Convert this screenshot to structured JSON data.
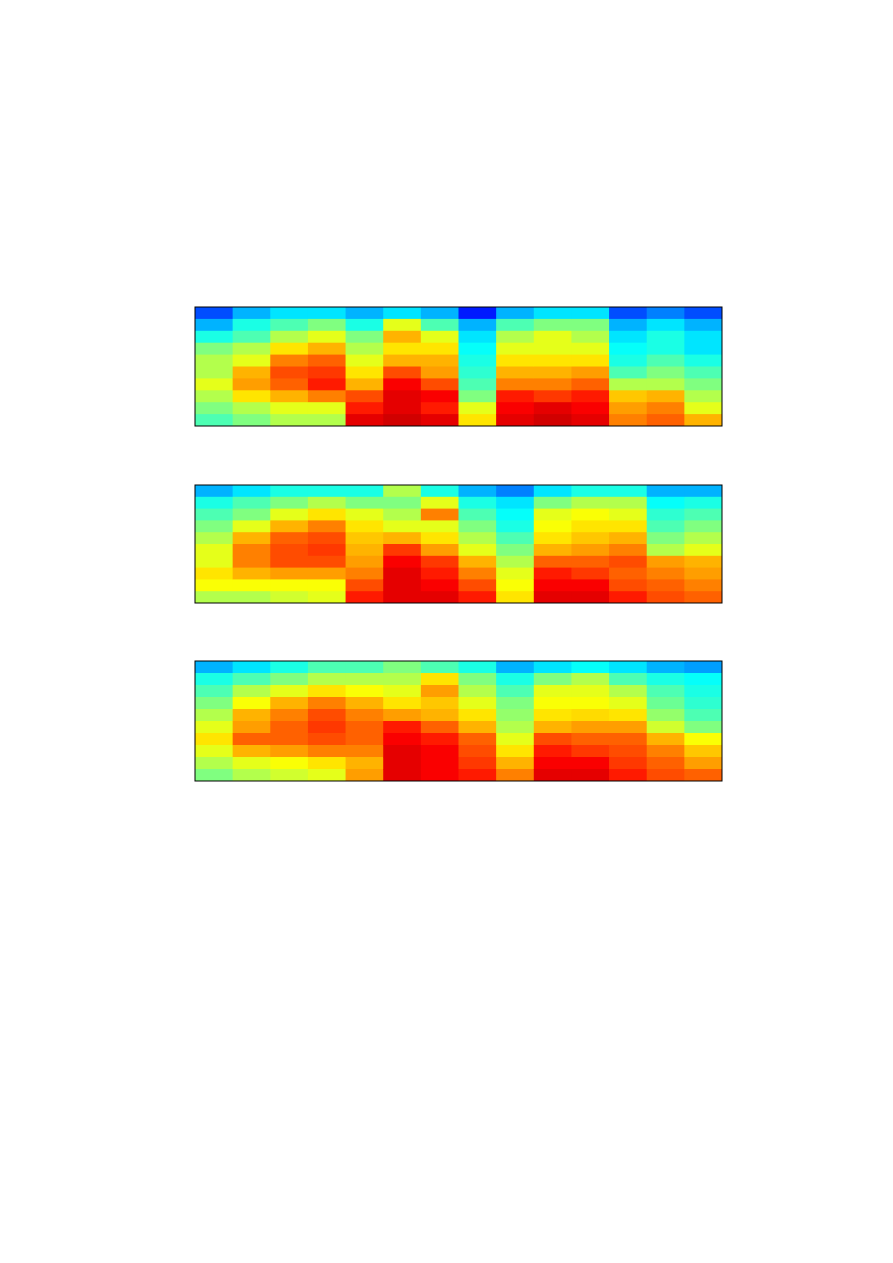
{
  "chart_data": [
    {
      "type": "heatmap",
      "colormap": "jet",
      "values": [
        [
          0.2,
          0.3,
          0.4,
          0.5,
          0.55,
          0.55,
          0.6,
          0.55,
          0.5,
          0.45
        ],
        [
          0.3,
          0.4,
          0.45,
          0.55,
          0.6,
          0.7,
          0.72,
          0.65,
          0.55,
          0.5
        ],
        [
          0.35,
          0.45,
          0.55,
          0.65,
          0.75,
          0.8,
          0.78,
          0.7,
          0.6,
          0.55
        ],
        [
          0.35,
          0.5,
          0.6,
          0.7,
          0.78,
          0.82,
          0.85,
          0.75,
          0.6,
          0.55
        ],
        [
          0.3,
          0.4,
          0.5,
          0.55,
          0.6,
          0.65,
          0.7,
          0.8,
          0.85,
          0.9
        ],
        [
          0.35,
          0.6,
          0.7,
          0.65,
          0.7,
          0.8,
          0.88,
          0.9,
          0.9,
          0.92
        ],
        [
          0.3,
          0.45,
          0.6,
          0.65,
          0.7,
          0.72,
          0.8,
          0.88,
          0.85,
          0.9
        ],
        [
          0.15,
          0.3,
          0.35,
          0.38,
          0.4,
          0.42,
          0.45,
          0.5,
          0.6,
          0.65
        ],
        [
          0.3,
          0.45,
          0.55,
          0.6,
          0.65,
          0.7,
          0.75,
          0.85,
          0.88,
          0.9
        ],
        [
          0.35,
          0.5,
          0.6,
          0.6,
          0.65,
          0.7,
          0.75,
          0.82,
          0.9,
          0.92
        ],
        [
          0.35,
          0.5,
          0.55,
          0.6,
          0.65,
          0.72,
          0.78,
          0.85,
          0.88,
          0.9
        ],
        [
          0.2,
          0.3,
          0.35,
          0.38,
          0.4,
          0.45,
          0.55,
          0.68,
          0.72,
          0.75
        ],
        [
          0.25,
          0.35,
          0.4,
          0.4,
          0.45,
          0.5,
          0.55,
          0.7,
          0.75,
          0.78
        ],
        [
          0.2,
          0.3,
          0.35,
          0.35,
          0.4,
          0.45,
          0.5,
          0.55,
          0.6,
          0.7
        ]
      ]
    },
    {
      "type": "heatmap",
      "colormap": "jet",
      "values": [
        [
          0.3,
          0.4,
          0.45,
          0.5,
          0.55,
          0.6,
          0.6,
          0.65,
          0.62,
          0.55
        ],
        [
          0.35,
          0.45,
          0.5,
          0.6,
          0.7,
          0.75,
          0.75,
          0.7,
          0.62,
          0.55
        ],
        [
          0.4,
          0.5,
          0.6,
          0.7,
          0.78,
          0.8,
          0.8,
          0.72,
          0.62,
          0.58
        ],
        [
          0.4,
          0.55,
          0.65,
          0.75,
          0.8,
          0.82,
          0.8,
          0.72,
          0.62,
          0.6
        ],
        [
          0.4,
          0.5,
          0.6,
          0.65,
          0.68,
          0.7,
          0.72,
          0.75,
          0.8,
          0.85
        ],
        [
          0.55,
          0.5,
          0.55,
          0.6,
          0.7,
          0.82,
          0.88,
          0.9,
          0.9,
          0.9
        ],
        [
          0.4,
          0.6,
          0.75,
          0.6,
          0.65,
          0.72,
          0.82,
          0.85,
          0.88,
          0.9
        ],
        [
          0.3,
          0.4,
          0.45,
          0.5,
          0.55,
          0.6,
          0.7,
          0.75,
          0.8,
          0.85
        ],
        [
          0.25,
          0.35,
          0.38,
          0.4,
          0.45,
          0.5,
          0.55,
          0.6,
          0.62,
          0.65
        ],
        [
          0.35,
          0.5,
          0.6,
          0.62,
          0.65,
          0.7,
          0.78,
          0.85,
          0.88,
          0.9
        ],
        [
          0.4,
          0.55,
          0.62,
          0.65,
          0.68,
          0.72,
          0.78,
          0.82,
          0.88,
          0.9
        ],
        [
          0.4,
          0.55,
          0.6,
          0.65,
          0.7,
          0.75,
          0.8,
          0.78,
          0.8,
          0.85
        ],
        [
          0.3,
          0.38,
          0.42,
          0.45,
          0.5,
          0.55,
          0.72,
          0.75,
          0.78,
          0.8
        ],
        [
          0.3,
          0.4,
          0.45,
          0.5,
          0.55,
          0.6,
          0.7,
          0.72,
          0.75,
          0.78
        ]
      ]
    },
    {
      "type": "heatmap",
      "colormap": "jet",
      "values": [
        [
          0.3,
          0.4,
          0.45,
          0.5,
          0.55,
          0.6,
          0.65,
          0.6,
          0.55,
          0.5
        ],
        [
          0.35,
          0.45,
          0.55,
          0.62,
          0.7,
          0.72,
          0.78,
          0.7,
          0.6,
          0.55
        ],
        [
          0.4,
          0.5,
          0.6,
          0.7,
          0.75,
          0.78,
          0.78,
          0.72,
          0.62,
          0.58
        ],
        [
          0.45,
          0.55,
          0.65,
          0.75,
          0.8,
          0.82,
          0.8,
          0.75,
          0.65,
          0.6
        ],
        [
          0.45,
          0.55,
          0.62,
          0.7,
          0.75,
          0.78,
          0.78,
          0.75,
          0.7,
          0.72
        ],
        [
          0.5,
          0.55,
          0.6,
          0.65,
          0.72,
          0.85,
          0.88,
          0.9,
          0.9,
          0.9
        ],
        [
          0.45,
          0.65,
          0.72,
          0.68,
          0.7,
          0.78,
          0.85,
          0.88,
          0.88,
          0.88
        ],
        [
          0.4,
          0.5,
          0.55,
          0.6,
          0.65,
          0.7,
          0.78,
          0.8,
          0.82,
          0.85
        ],
        [
          0.3,
          0.4,
          0.45,
          0.5,
          0.52,
          0.55,
          0.6,
          0.65,
          0.7,
          0.75
        ],
        [
          0.35,
          0.5,
          0.6,
          0.62,
          0.65,
          0.7,
          0.8,
          0.85,
          0.88,
          0.9
        ],
        [
          0.38,
          0.55,
          0.6,
          0.62,
          0.66,
          0.72,
          0.78,
          0.82,
          0.88,
          0.9
        ],
        [
          0.35,
          0.45,
          0.55,
          0.6,
          0.65,
          0.72,
          0.78,
          0.8,
          0.82,
          0.85
        ],
        [
          0.3,
          0.4,
          0.45,
          0.48,
          0.52,
          0.58,
          0.7,
          0.75,
          0.78,
          0.8
        ],
        [
          0.28,
          0.38,
          0.4,
          0.42,
          0.45,
          0.5,
          0.62,
          0.68,
          0.72,
          0.78
        ]
      ]
    }
  ]
}
